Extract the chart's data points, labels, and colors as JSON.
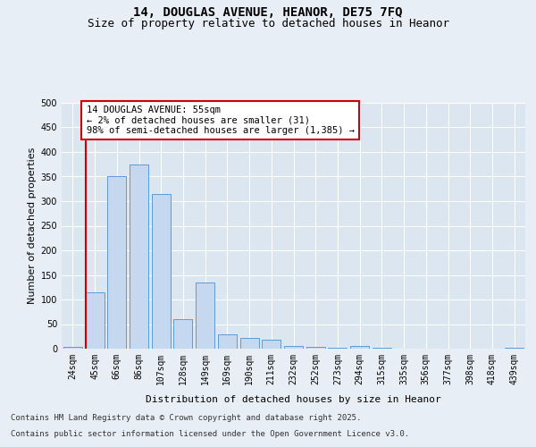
{
  "title_line1": "14, DOUGLAS AVENUE, HEANOR, DE75 7FQ",
  "title_line2": "Size of property relative to detached houses in Heanor",
  "xlabel": "Distribution of detached houses by size in Heanor",
  "ylabel": "Number of detached properties",
  "bar_color": "#c5d8f0",
  "bar_edge_color": "#5b9bd5",
  "background_color": "#e8eef5",
  "plot_bg_color": "#dce6f1",
  "grid_color": "#ffffff",
  "categories": [
    "24sqm",
    "45sqm",
    "66sqm",
    "86sqm",
    "107sqm",
    "128sqm",
    "149sqm",
    "169sqm",
    "190sqm",
    "211sqm",
    "232sqm",
    "252sqm",
    "273sqm",
    "294sqm",
    "315sqm",
    "335sqm",
    "356sqm",
    "377sqm",
    "398sqm",
    "418sqm",
    "439sqm"
  ],
  "values": [
    3,
    115,
    350,
    375,
    315,
    60,
    135,
    30,
    22,
    18,
    6,
    3,
    2,
    5,
    2,
    0,
    0,
    0,
    0,
    0,
    2
  ],
  "vline_x": 0.575,
  "vline_color": "#cc0000",
  "annotation_title": "14 DOUGLAS AVENUE: 55sqm",
  "annotation_line2": "← 2% of detached houses are smaller (31)",
  "annotation_line3": "98% of semi-detached houses are larger (1,385) →",
  "annotation_box_edge_color": "#cc0000",
  "ylim": [
    0,
    500
  ],
  "yticks": [
    0,
    50,
    100,
    150,
    200,
    250,
    300,
    350,
    400,
    450,
    500
  ],
  "footer_line1": "Contains HM Land Registry data © Crown copyright and database right 2025.",
  "footer_line2": "Contains public sector information licensed under the Open Government Licence v3.0.",
  "title_fontsize": 10,
  "subtitle_fontsize": 9,
  "axis_label_fontsize": 8,
  "tick_fontsize": 7,
  "annotation_fontsize": 7.5,
  "footer_fontsize": 6.5
}
